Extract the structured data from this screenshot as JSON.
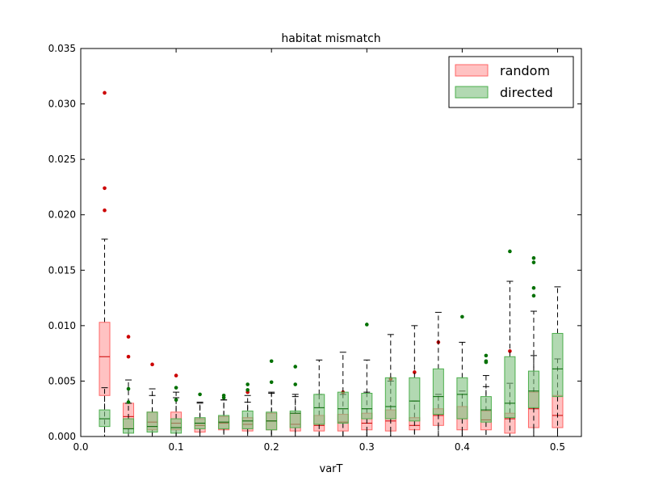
{
  "chart_data": {
    "type": "boxplot",
    "title": "habitat mismatch",
    "xlabel": "varT",
    "ylabel": "",
    "xlim": [
      0.0,
      0.525
    ],
    "ylim": [
      0.0,
      0.035
    ],
    "xticks": [
      0.0,
      0.1,
      0.2,
      0.3,
      0.4,
      0.5
    ],
    "xtick_labels": [
      "0.0",
      "0.1",
      "0.2",
      "0.3",
      "0.4",
      "0.5"
    ],
    "yticks": [
      0.0,
      0.005,
      0.01,
      0.015,
      0.02,
      0.025,
      0.03,
      0.035
    ],
    "ytick_labels": [
      "0.000",
      "0.005",
      "0.010",
      "0.015",
      "0.020",
      "0.025",
      "0.030",
      "0.035"
    ],
    "legend": {
      "position": "top-right"
    },
    "series": [
      {
        "name": "random",
        "fill": "#ff9999",
        "edge": "#ff6666",
        "median_color": "#cc0000",
        "flier_color": "#cc0000",
        "boxes": [
          {
            "x": 0.025,
            "q1": 0.0037,
            "median": 0.0072,
            "q3": 0.0103,
            "whislo": 0.0,
            "whishi": 0.0178,
            "fliers": [
              0.031,
              0.0224,
              0.0204
            ]
          },
          {
            "x": 0.05,
            "q1": 0.0007,
            "median": 0.0018,
            "q3": 0.003,
            "whislo": 0.0,
            "whishi": 0.0051,
            "fliers": [
              0.009,
              0.0072
            ]
          },
          {
            "x": 0.075,
            "q1": 0.0006,
            "median": 0.0013,
            "q3": 0.0022,
            "whislo": 0.0,
            "whishi": 0.0043,
            "fliers": [
              0.0065
            ]
          },
          {
            "x": 0.1,
            "q1": 0.0006,
            "median": 0.0012,
            "q3": 0.0022,
            "whislo": 0.0,
            "whishi": 0.004,
            "fliers": [
              0.0055
            ]
          },
          {
            "x": 0.125,
            "q1": 0.0004,
            "median": 0.001,
            "q3": 0.0016,
            "whislo": 0.0,
            "whishi": 0.003,
            "fliers": []
          },
          {
            "x": 0.15,
            "q1": 0.0006,
            "median": 0.0012,
            "q3": 0.0018,
            "whislo": 0.0,
            "whishi": 0.0033,
            "fliers": []
          },
          {
            "x": 0.175,
            "q1": 0.0005,
            "median": 0.0011,
            "q3": 0.0017,
            "whislo": 0.0,
            "whishi": 0.0031,
            "fliers": [
              0.004
            ]
          },
          {
            "x": 0.2,
            "q1": 0.0006,
            "median": 0.0014,
            "q3": 0.0021,
            "whislo": 0.0,
            "whishi": 0.004,
            "fliers": []
          },
          {
            "x": 0.225,
            "q1": 0.0005,
            "median": 0.0011,
            "q3": 0.0021,
            "whislo": 0.0,
            "whishi": 0.0038,
            "fliers": []
          },
          {
            "x": 0.25,
            "q1": 0.0005,
            "median": 0.001,
            "q3": 0.0019,
            "whislo": 0.0,
            "whishi": 0.0038,
            "fliers": []
          },
          {
            "x": 0.275,
            "q1": 0.0005,
            "median": 0.0013,
            "q3": 0.002,
            "whislo": 0.0,
            "whishi": 0.0038,
            "fliers": [
              0.004
            ]
          },
          {
            "x": 0.3,
            "q1": 0.0006,
            "median": 0.0012,
            "q3": 0.0021,
            "whislo": 0.0,
            "whishi": 0.004,
            "fliers": []
          },
          {
            "x": 0.325,
            "q1": 0.0005,
            "median": 0.0014,
            "q3": 0.0024,
            "whislo": 0.0,
            "whishi": 0.005,
            "fliers": [
              0.0052
            ]
          },
          {
            "x": 0.35,
            "q1": 0.0006,
            "median": 0.001,
            "q3": 0.0017,
            "whislo": 0.0,
            "whishi": 0.0032,
            "fliers": [
              0.0058
            ]
          },
          {
            "x": 0.375,
            "q1": 0.001,
            "median": 0.0019,
            "q3": 0.0025,
            "whislo": 0.0,
            "whishi": 0.0038,
            "fliers": [
              0.0085
            ]
          },
          {
            "x": 0.4,
            "q1": 0.0006,
            "median": 0.0016,
            "q3": 0.0027,
            "whislo": 0.0,
            "whishi": 0.0041,
            "fliers": []
          },
          {
            "x": 0.425,
            "q1": 0.0006,
            "median": 0.0015,
            "q3": 0.0023,
            "whislo": 0.0,
            "whishi": 0.0045,
            "fliers": []
          },
          {
            "x": 0.45,
            "q1": 0.0003,
            "median": 0.0016,
            "q3": 0.0021,
            "whislo": 0.0,
            "whishi": 0.0048,
            "fliers": [
              0.0077
            ]
          },
          {
            "x": 0.475,
            "q1": 0.0008,
            "median": 0.0025,
            "q3": 0.004,
            "whislo": 0.0,
            "whishi": 0.0073,
            "fliers": []
          },
          {
            "x": 0.5,
            "q1": 0.0008,
            "median": 0.0019,
            "q3": 0.0037,
            "whislo": 0.0,
            "whishi": 0.007,
            "fliers": []
          }
        ]
      },
      {
        "name": "directed",
        "fill": "#7fbf7f",
        "edge": "#4daf4d",
        "median_color": "#006400",
        "flier_color": "#007000",
        "boxes": [
          {
            "x": 0.025,
            "q1": 0.0009,
            "median": 0.0016,
            "q3": 0.0024,
            "whislo": 0.0,
            "whishi": 0.0044,
            "fliers": []
          },
          {
            "x": 0.05,
            "q1": 0.0003,
            "median": 0.0007,
            "q3": 0.0016,
            "whislo": 0.0,
            "whishi": 0.003,
            "fliers": [
              0.0043,
              0.0031
            ]
          },
          {
            "x": 0.075,
            "q1": 0.0004,
            "median": 0.0009,
            "q3": 0.0022,
            "whislo": 0.0,
            "whishi": 0.0037,
            "fliers": []
          },
          {
            "x": 0.1,
            "q1": 0.0003,
            "median": 0.0008,
            "q3": 0.0016,
            "whislo": 0.0,
            "whishi": 0.0035,
            "fliers": [
              0.0044,
              0.0033
            ]
          },
          {
            "x": 0.125,
            "q1": 0.0007,
            "median": 0.0012,
            "q3": 0.0017,
            "whislo": 0.0,
            "whishi": 0.0031,
            "fliers": [
              0.0038
            ]
          },
          {
            "x": 0.15,
            "q1": 0.0007,
            "median": 0.0013,
            "q3": 0.0019,
            "whislo": 0.0,
            "whishi": 0.0033,
            "fliers": [
              0.0037,
              0.0035
            ]
          },
          {
            "x": 0.175,
            "q1": 0.0007,
            "median": 0.0014,
            "q3": 0.0023,
            "whislo": 0.0,
            "whishi": 0.0037,
            "fliers": [
              0.0047,
              0.0042
            ]
          },
          {
            "x": 0.2,
            "q1": 0.0006,
            "median": 0.0014,
            "q3": 0.0022,
            "whislo": 0.0,
            "whishi": 0.0039,
            "fliers": [
              0.0068,
              0.0049
            ]
          },
          {
            "x": 0.225,
            "q1": 0.0008,
            "median": 0.0021,
            "q3": 0.0023,
            "whislo": 0.0,
            "whishi": 0.0036,
            "fliers": [
              0.0063,
              0.0047
            ]
          },
          {
            "x": 0.25,
            "q1": 0.0011,
            "median": 0.0026,
            "q3": 0.0038,
            "whislo": 0.0,
            "whishi": 0.0069,
            "fliers": []
          },
          {
            "x": 0.275,
            "q1": 0.0012,
            "median": 0.0025,
            "q3": 0.004,
            "whislo": 0.0,
            "whishi": 0.0076,
            "fliers": []
          },
          {
            "x": 0.3,
            "q1": 0.0016,
            "median": 0.0025,
            "q3": 0.0039,
            "whislo": 0.0,
            "whishi": 0.0069,
            "fliers": [
              0.0101
            ]
          },
          {
            "x": 0.325,
            "q1": 0.0016,
            "median": 0.0027,
            "q3": 0.0053,
            "whislo": 0.0,
            "whishi": 0.0092,
            "fliers": []
          },
          {
            "x": 0.35,
            "q1": 0.0014,
            "median": 0.0032,
            "q3": 0.0053,
            "whislo": 0.0,
            "whishi": 0.01,
            "fliers": []
          },
          {
            "x": 0.375,
            "q1": 0.002,
            "median": 0.0036,
            "q3": 0.0061,
            "whislo": 0.0,
            "whishi": 0.0112,
            "fliers": []
          },
          {
            "x": 0.4,
            "q1": 0.0016,
            "median": 0.0038,
            "q3": 0.0053,
            "whislo": 0.0,
            "whishi": 0.0085,
            "fliers": [
              0.0108
            ]
          },
          {
            "x": 0.425,
            "q1": 0.0013,
            "median": 0.0024,
            "q3": 0.0036,
            "whislo": 0.0,
            "whishi": 0.0055,
            "fliers": [
              0.0073,
              0.0068,
              0.0067
            ]
          },
          {
            "x": 0.45,
            "q1": 0.0017,
            "median": 0.003,
            "q3": 0.0072,
            "whislo": 0.0,
            "whishi": 0.014,
            "fliers": [
              0.0167
            ]
          },
          {
            "x": 0.475,
            "q1": 0.0026,
            "median": 0.0041,
            "q3": 0.0059,
            "whislo": 0.0,
            "whishi": 0.0113,
            "fliers": [
              0.0161,
              0.0157,
              0.0134,
              0.0127
            ]
          },
          {
            "x": 0.5,
            "q1": 0.0036,
            "median": 0.0061,
            "q3": 0.0093,
            "whislo": 0.0,
            "whishi": 0.0135,
            "fliers": []
          }
        ]
      }
    ]
  }
}
